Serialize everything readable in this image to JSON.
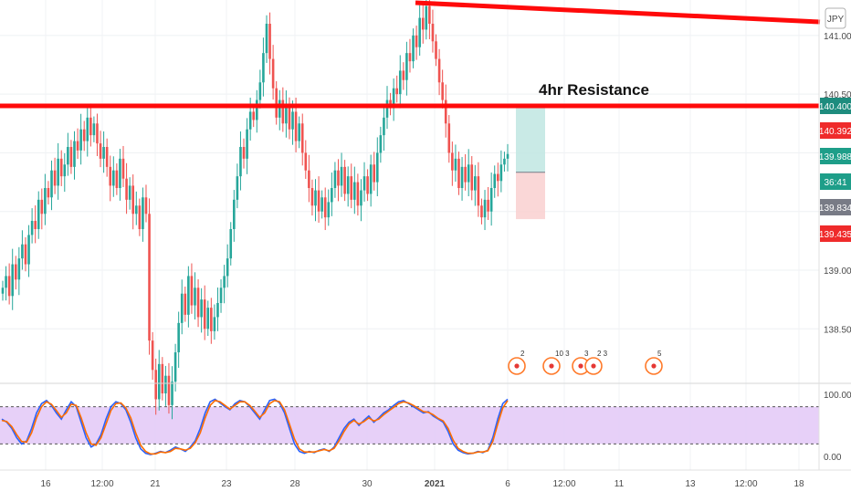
{
  "chart_data": {
    "type": "candlestick",
    "instrument_code": "JPY",
    "annotation": "4hr Resistance",
    "resistance_level": 140.4,
    "y_axis_ticks": [
      "141.000",
      "140.500",
      "139.000",
      "138.500"
    ],
    "ylim": [
      137.8,
      141.3
    ],
    "price_badges": [
      {
        "label": "140.400",
        "value": 140.4,
        "color": "#1e8c7e"
      },
      {
        "label": "140.392",
        "value": 140.392,
        "color": "#ef2b2b"
      },
      {
        "label": "139.988",
        "value": 139.988,
        "color": "#1e9e89"
      },
      {
        "label": "36:41",
        "value": 139.9,
        "color": "#1e9e89"
      },
      {
        "label": "139.834",
        "value": 139.834,
        "color": "#787b86"
      },
      {
        "label": "139.435",
        "value": 139.435,
        "color": "#ef2b2b"
      }
    ],
    "x_axis_ticks": [
      "16",
      "12:00",
      "21",
      "23",
      "28",
      "30",
      "2021",
      "6",
      "12:00",
      "11",
      "13",
      "12:00",
      "18"
    ],
    "candles_close": [
      138.85,
      138.95,
      138.78,
      139.05,
      138.92,
      139.1,
      139.22,
      139.05,
      139.3,
      139.42,
      139.35,
      139.6,
      139.48,
      139.7,
      139.62,
      139.85,
      139.72,
      139.95,
      139.8,
      139.9,
      140.05,
      139.88,
      140.1,
      140.02,
      140.2,
      140.1,
      140.3,
      140.15,
      140.25,
      140.08,
      139.95,
      140.05,
      139.88,
      139.72,
      139.85,
      139.7,
      139.95,
      139.78,
      139.6,
      139.72,
      139.48,
      139.55,
      139.35,
      139.62,
      139.48,
      138.4,
      138.15,
      137.9,
      138.2,
      137.95,
      138.1,
      137.85,
      138.05,
      138.3,
      138.55,
      138.8,
      138.62,
      138.95,
      138.7,
      138.85,
      138.6,
      138.75,
      138.5,
      138.68,
      138.48,
      138.6,
      138.72,
      138.85,
      138.95,
      139.1,
      139.35,
      139.6,
      139.8,
      140.05,
      139.95,
      140.2,
      140.35,
      140.28,
      140.45,
      140.6,
      140.85,
      141.1,
      140.8,
      140.55,
      140.3,
      140.45,
      140.25,
      140.4,
      140.2,
      140.35,
      140.1,
      140.25,
      140.0,
      139.85,
      139.7,
      139.55,
      139.68,
      139.5,
      139.62,
      139.45,
      139.58,
      139.7,
      139.85,
      139.72,
      139.88,
      139.65,
      139.8,
      139.6,
      139.75,
      139.55,
      139.68,
      139.8,
      139.65,
      139.9,
      139.75,
      140.0,
      140.15,
      140.3,
      140.45,
      140.38,
      140.55,
      140.5,
      140.7,
      140.62,
      140.85,
      140.78,
      141.0,
      140.9,
      141.15,
      141.05,
      141.25,
      141.1,
      140.95,
      140.8,
      140.6,
      140.45,
      140.25,
      140.0,
      139.85,
      139.95,
      139.7,
      139.88,
      139.75,
      139.9,
      139.68,
      139.8,
      139.55,
      139.45,
      139.6,
      139.5,
      139.7,
      139.82,
      139.76,
      139.9,
      139.95,
      139.99
    ],
    "position_box": {
      "entry": 139.834,
      "target": 140.392,
      "stop": 139.435
    },
    "events": [
      {
        "label": "2"
      },
      {
        "label": "10"
      },
      {
        "label": "3"
      },
      {
        "label": "3"
      },
      {
        "label": "2"
      },
      {
        "label": "3"
      },
      {
        "label": "5"
      }
    ],
    "oscillator": {
      "y_axis_ticks": [
        "100.00",
        "0.00"
      ],
      "band_upper": 80,
      "band_lower": 20,
      "k": [
        60,
        55,
        45,
        30,
        20,
        25,
        45,
        70,
        85,
        90,
        82,
        70,
        60,
        75,
        88,
        80,
        55,
        30,
        15,
        20,
        35,
        60,
        80,
        88,
        85,
        75,
        55,
        30,
        12,
        5,
        3,
        5,
        8,
        6,
        10,
        15,
        12,
        8,
        15,
        25,
        45,
        70,
        88,
        92,
        86,
        80,
        75,
        85,
        90,
        88,
        80,
        70,
        60,
        75,
        90,
        92,
        86,
        70,
        45,
        20,
        8,
        5,
        8,
        6,
        10,
        12,
        8,
        15,
        30,
        45,
        55,
        60,
        50,
        58,
        65,
        55,
        62,
        70,
        75,
        82,
        88,
        90,
        85,
        80,
        75,
        70,
        72,
        65,
        60,
        55,
        40,
        20,
        10,
        6,
        4,
        5,
        8,
        6,
        10,
        30,
        60,
        85,
        92
      ],
      "d": [
        58,
        56,
        48,
        35,
        24,
        23,
        38,
        62,
        80,
        88,
        84,
        74,
        63,
        70,
        84,
        82,
        62,
        38,
        20,
        18,
        30,
        52,
        74,
        85,
        86,
        78,
        62,
        38,
        18,
        8,
        4,
        4,
        7,
        6,
        8,
        13,
        12,
        10,
        13,
        22,
        38,
        62,
        82,
        90,
        88,
        82,
        76,
        82,
        88,
        88,
        82,
        73,
        63,
        70,
        85,
        90,
        88,
        75,
        52,
        28,
        12,
        7,
        7,
        7,
        9,
        11,
        9,
        13,
        25,
        40,
        52,
        58,
        52,
        56,
        62,
        57,
        60,
        67,
        73,
        79,
        85,
        88,
        86,
        82,
        77,
        72,
        71,
        67,
        61,
        57,
        45,
        26,
        13,
        8,
        5,
        5,
        7,
        7,
        9,
        24,
        52,
        78,
        90
      ]
    }
  }
}
